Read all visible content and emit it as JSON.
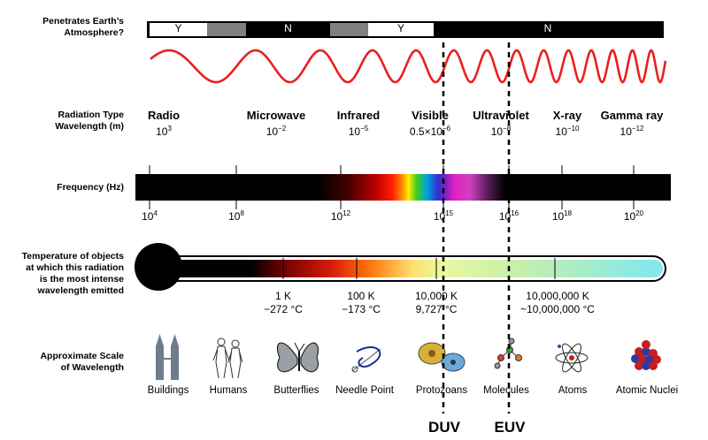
{
  "row_labels": {
    "atmosphere": "Penetrates Earth’s\nAtmosphere?",
    "radiation": "Radiation Type\nWavelength (m)",
    "frequency": "Frequency (Hz)",
    "temperature": "Temperature of objects\nat which this radiation\nis the most intense\nwavelength emitted",
    "scale": "Approximate Scale\nof Wavelength"
  },
  "atmosphere_segments": [
    {
      "label": "Y",
      "color": "#ffffff"
    },
    {
      "label": "",
      "color": "#808080"
    },
    {
      "label": "N",
      "color": "#000000"
    },
    {
      "label": "",
      "color": "#808080"
    },
    {
      "label": "Y",
      "color": "#ffffff"
    },
    {
      "label": "N",
      "color": "#000000"
    }
  ],
  "radiation_types": [
    {
      "name": "Radio",
      "wl_base": "10",
      "wl_exp": "3"
    },
    {
      "name": "Microwave",
      "wl_base": "10",
      "wl_exp": "−2"
    },
    {
      "name": "Infrared",
      "wl_base": "10",
      "wl_exp": "−5"
    },
    {
      "name": "Visible",
      "wl_base": "0.5×10",
      "wl_exp": "−6"
    },
    {
      "name": "Ultraviolet",
      "wl_base": "10",
      "wl_exp": "−8"
    },
    {
      "name": "X-ray",
      "wl_base": "10",
      "wl_exp": "−10"
    },
    {
      "name": "Gamma ray",
      "wl_base": "10",
      "wl_exp": "−12"
    }
  ],
  "frequencies": [
    {
      "base": "10",
      "exp": "4"
    },
    {
      "base": "10",
      "exp": "8"
    },
    {
      "base": "10",
      "exp": "12"
    },
    {
      "base": "10",
      "exp": "15"
    },
    {
      "base": "10",
      "exp": "16"
    },
    {
      "base": "10",
      "exp": "18"
    },
    {
      "base": "10",
      "exp": "20"
    }
  ],
  "temperatures": [
    {
      "line1": "1 K",
      "line2": "−272 °C"
    },
    {
      "line1": "100 K",
      "line2": "−173 °C"
    },
    {
      "line1": "10,000 K",
      "line2": "9,727 °C"
    },
    {
      "line1": "10,000,000 K",
      "line2": "~10,000,000 °C"
    }
  ],
  "scale_items": [
    {
      "label": "Buildings",
      "icon": "buildings-icon"
    },
    {
      "label": "Humans",
      "icon": "humans-icon"
    },
    {
      "label": "Butterflies",
      "icon": "butterfly-icon"
    },
    {
      "label": "Needle Point",
      "icon": "needle-icon"
    },
    {
      "label": "Protozoans",
      "icon": "protozoan-icon"
    },
    {
      "label": "Molecules",
      "icon": "molecule-icon"
    },
    {
      "label": "Atoms",
      "icon": "atom-icon"
    },
    {
      "label": "Atomic Nuclei",
      "icon": "nucleus-icon"
    }
  ],
  "markers": [
    {
      "label": "DUV"
    },
    {
      "label": "EUV"
    }
  ],
  "colors": {
    "wave": "#e8201e",
    "marker": "#000000",
    "thermometer_tip": "#7ee8f0"
  }
}
